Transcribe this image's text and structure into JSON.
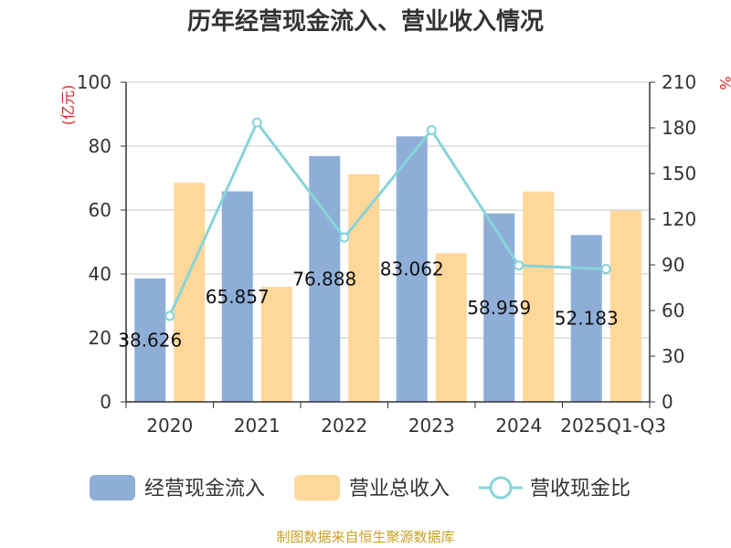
{
  "chart_data": {
    "type": "bar",
    "title": "历年经营现金流入、营业收入情况",
    "categories": [
      "2020",
      "2021",
      "2022",
      "2023",
      "2024",
      "2025Q1-Q3"
    ],
    "series": [
      {
        "name": "经营现金流入",
        "type": "bar",
        "axis": "left",
        "color": "#8eaed8",
        "values": [
          38.626,
          65.857,
          76.888,
          83.062,
          58.959,
          52.183
        ],
        "labels": [
          "38.626",
          "65.857",
          "76.888",
          "83.062",
          "58.959",
          "52.183"
        ]
      },
      {
        "name": "营业总收入",
        "type": "bar",
        "axis": "left",
        "color": "#ffd799",
        "values": [
          68.5,
          36.0,
          71.2,
          46.5,
          65.8,
          59.8
        ]
      },
      {
        "name": "营收现金比",
        "type": "line",
        "axis": "right",
        "color": "#87d4d8",
        "values": [
          56.5,
          183.5,
          108.0,
          178.5,
          89.6,
          87.3
        ]
      }
    ],
    "y_left": {
      "unit": "(亿元)",
      "min": 0,
      "max": 100,
      "ticks": [
        "0",
        "20",
        "40",
        "60",
        "80",
        "100"
      ]
    },
    "y_right": {
      "unit": "%",
      "min": 0,
      "max": 210,
      "ticks": [
        "0",
        "30",
        "60",
        "90",
        "120",
        "150",
        "180",
        "210"
      ]
    },
    "grid": true,
    "legend_position": "bottom"
  },
  "source": "制图数据来自恒生聚源数据库"
}
